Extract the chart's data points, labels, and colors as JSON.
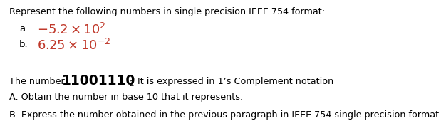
{
  "bg_color": "#ffffff",
  "text_color": "#000000",
  "red_color": "#c0392b",
  "line1": "Represent the following numbers in single precision IEEE 754 format:",
  "complement_text": " It is expressed in 1’s Complement notation",
  "line_A": "A. Obtain the number in base 10 that it represents.",
  "line_B": "B. Express the number obtained in the previous paragraph in IEEE 754 single precision format"
}
